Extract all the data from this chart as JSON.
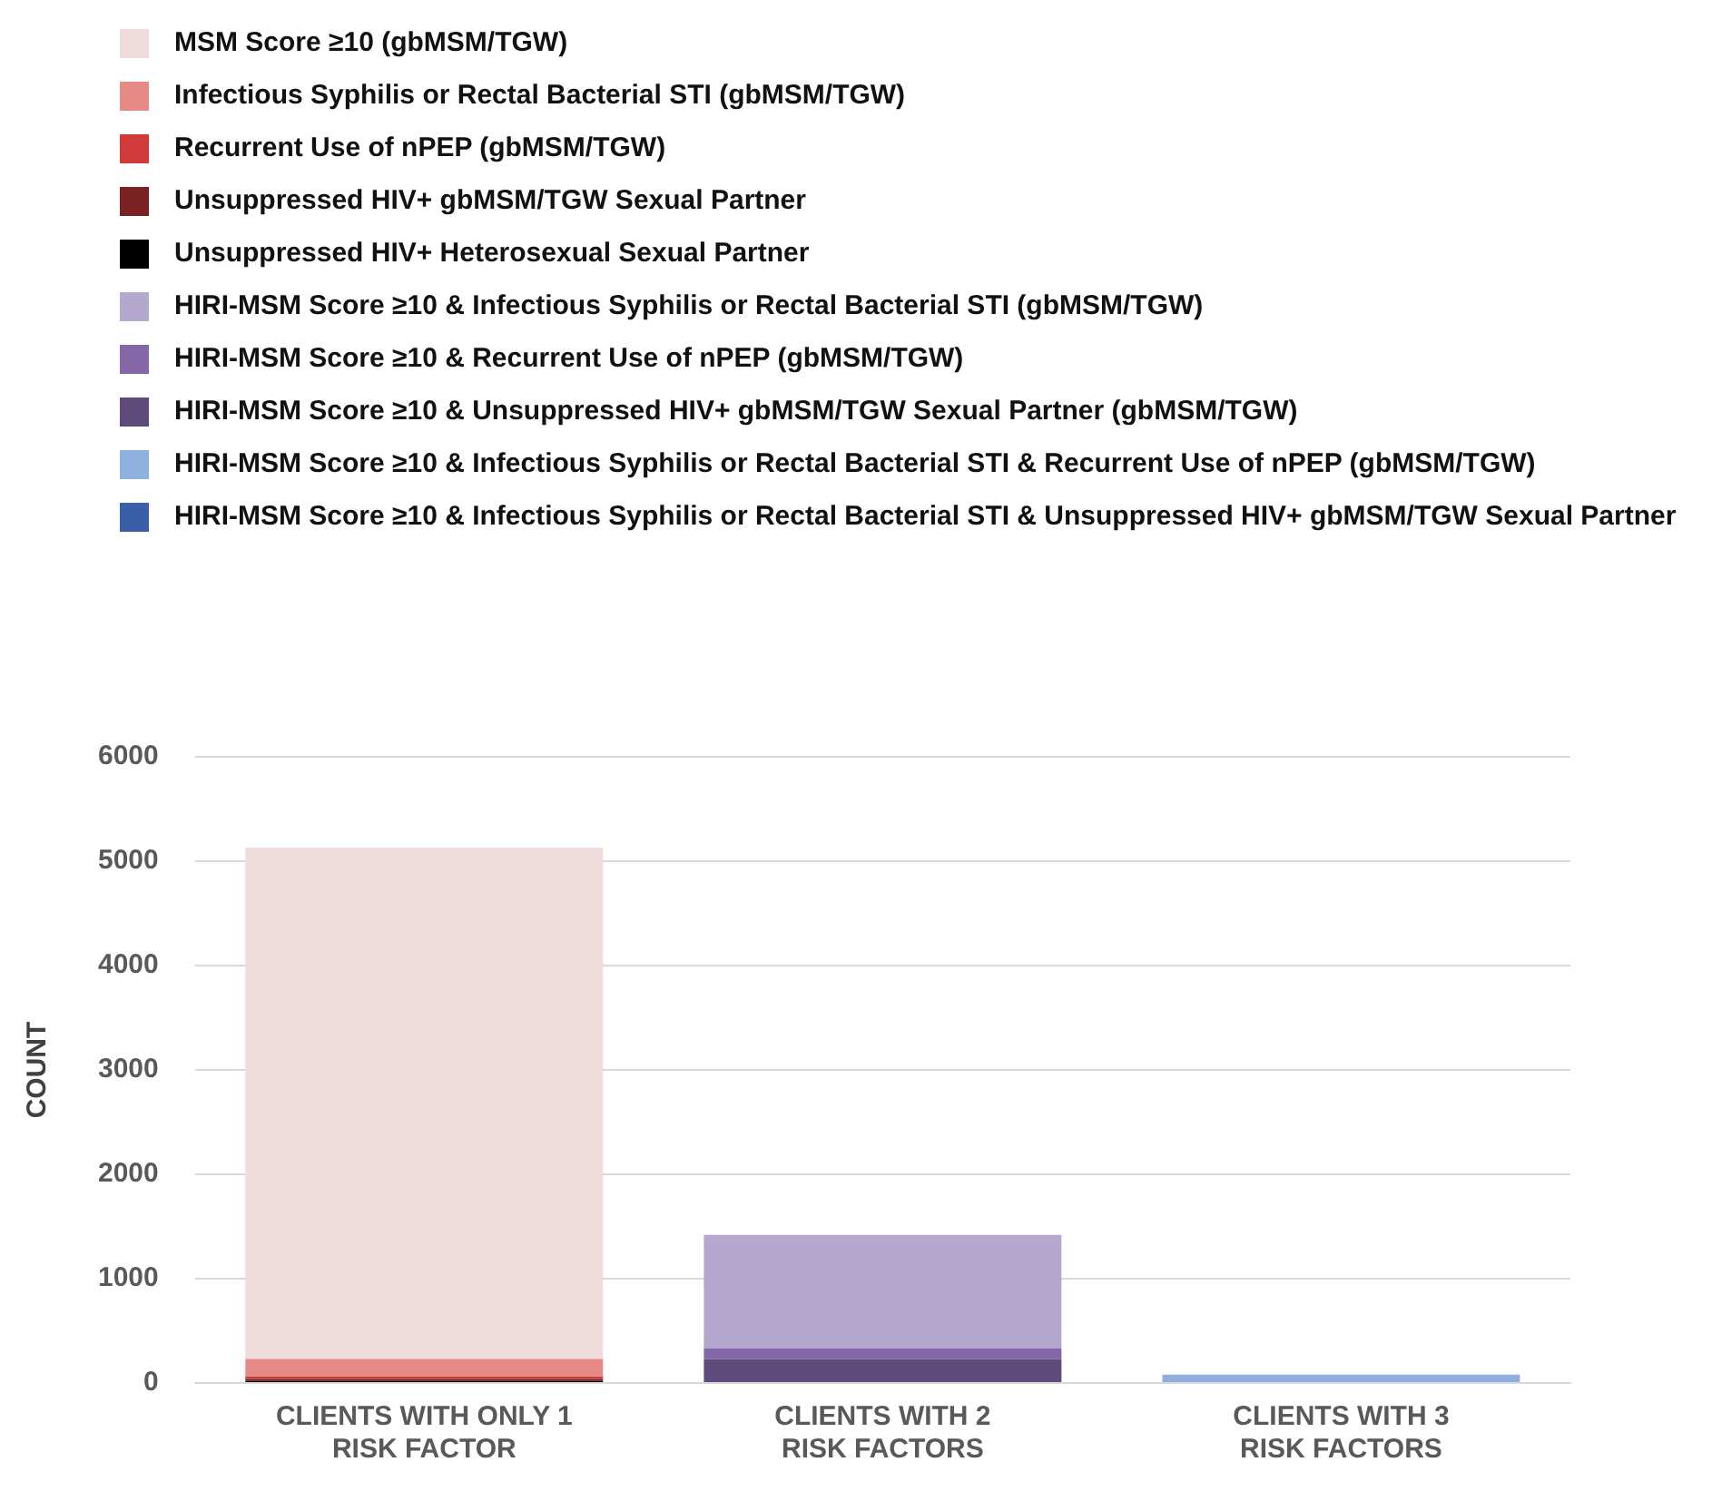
{
  "chart_data": {
    "type": "bar",
    "stacked": true,
    "ylabel": "COUNT",
    "categories": [
      "CLIENTS WITH ONLY 1\nRISK FACTOR",
      "CLIENTS WITH 2\nRISK FACTORS",
      "CLIENTS WITH 3\nRISK FACTORS"
    ],
    "ylim": [
      0,
      6000
    ],
    "yticks": [
      0,
      1000,
      2000,
      3000,
      4000,
      5000,
      6000
    ],
    "grid": "y",
    "legend": "top",
    "series": [
      {
        "name": "HIRI-MSM Score ≥10 & Infectious Syphilis or Rectal Bacterial STI & Unsuppressed HIV+ gbMSM/TGW Sexual Partner",
        "color": "#3a5ea8",
        "values": [
          null,
          null,
          null
        ]
      },
      {
        "name": "HIRI-MSM Score ≥10 & Infectious Syphilis or Rectal Bacterial STI & Recurrent Use of nPEP (gbMSM/TGW)",
        "color": "#8fb0de",
        "values": [
          null,
          null,
          80
        ]
      },
      {
        "name": "HIRI-MSM Score ≥10 & Unsuppressed HIV+ gbMSM/TGW Sexual Partner (gbMSM/TGW)",
        "color": "#5f4a7c",
        "values": [
          null,
          230,
          null
        ]
      },
      {
        "name": "HIRI-MSM Score ≥10 & Recurrent Use of nPEP (gbMSM/TGW)",
        "color": "#8566a8",
        "values": [
          null,
          100,
          null
        ]
      },
      {
        "name": "HIRI-MSM Score ≥10 & Infectious Syphilis or Rectal Bacterial STI (gbMSM/TGW)",
        "color": "#b5a8cf",
        "values": [
          null,
          1090,
          null
        ]
      },
      {
        "name": "Unsuppressed HIV+ Heterosexual Sexual Partner",
        "color": "#000000",
        "values": [
          20,
          null,
          null
        ]
      },
      {
        "name": "Unsuppressed HIV+ gbMSM/TGW Sexual Partner",
        "color": "#7a2222",
        "values": [
          20,
          null,
          null
        ]
      },
      {
        "name": "Recurrent Use of nPEP (gbMSM/TGW)",
        "color": "#d13b3b",
        "values": [
          20,
          null,
          null
        ]
      },
      {
        "name": "Infectious Syphilis or Rectal Bacterial STI (gbMSM/TGW)",
        "color": "#e58a87",
        "values": [
          170,
          null,
          null
        ]
      },
      {
        "name": "MSM Score ≥10 (gbMSM/TGW)",
        "color": "#f0dcdc",
        "values": [
          4900,
          null,
          null
        ]
      }
    ]
  }
}
